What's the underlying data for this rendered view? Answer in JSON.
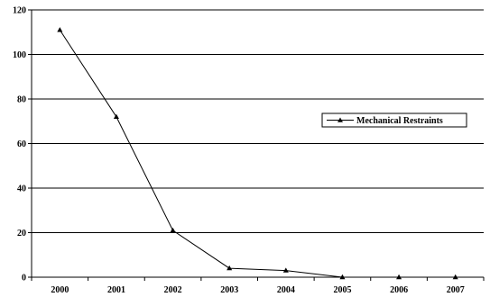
{
  "chart_data": {
    "type": "line",
    "title": "",
    "xlabel": "",
    "ylabel": "",
    "categories": [
      "2000",
      "2001",
      "2002",
      "2003",
      "2004",
      "2005",
      "2006",
      "2007"
    ],
    "series": [
      {
        "name": "Mechanical Restraints",
        "values": [
          111,
          72,
          21,
          4,
          3,
          0,
          0,
          0
        ]
      }
    ],
    "ylim": [
      0,
      120
    ],
    "yticks": [
      0,
      20,
      40,
      60,
      80,
      100,
      120
    ],
    "grid": "horizontal",
    "legend_position": "right",
    "colors": {
      "line": "#000000",
      "grid": "#000000",
      "background": "#ffffff"
    }
  }
}
